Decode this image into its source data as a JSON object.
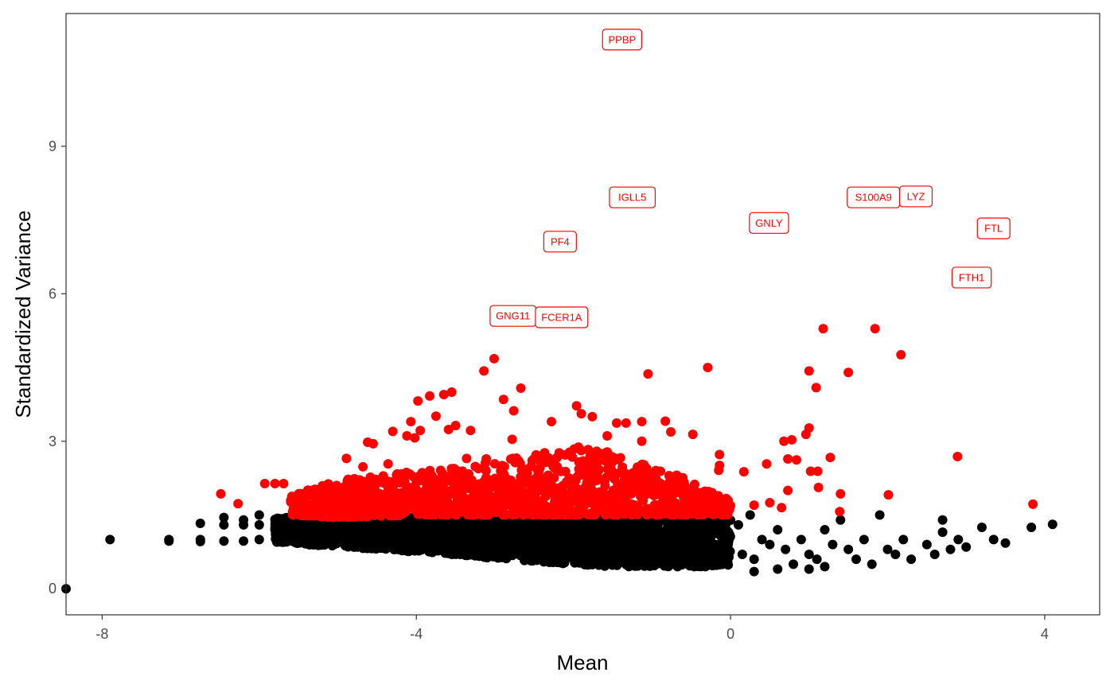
{
  "chart_data": {
    "type": "scatter",
    "title": "",
    "xlabel": "Mean",
    "ylabel": "Standardized Variance",
    "xlim": [
      -8.46,
      4.7
    ],
    "ylim": [
      -0.53,
      11.7
    ],
    "x_ticks": [
      -8,
      -4,
      0,
      4
    ],
    "y_ticks": [
      0,
      3,
      6,
      9
    ],
    "x_tick_labels": [
      "-8",
      "-4",
      "0",
      "4"
    ],
    "y_tick_labels": [
      "0",
      "3",
      "6",
      "9"
    ],
    "grid": false,
    "legend": "none",
    "colors": {
      "variable": "#ff0000",
      "non_variable": "#000000",
      "label_border": "#ff0000",
      "label_text": "#ff0000"
    },
    "labeled_points": [
      {
        "label": "PPBP",
        "x": -1.38,
        "y": 11.17
      },
      {
        "label": "IGLL5",
        "x": -1.25,
        "y": 7.96
      },
      {
        "label": "PF4",
        "x": -2.17,
        "y": 7.06
      },
      {
        "label": "GNG11",
        "x": -2.77,
        "y": 5.55
      },
      {
        "label": "FCER1A",
        "x": -2.15,
        "y": 5.52
      },
      {
        "label": "GNLY",
        "x": 0.49,
        "y": 7.44
      },
      {
        "label": "S100A9",
        "x": 1.82,
        "y": 7.96
      },
      {
        "label": "LYZ",
        "x": 2.36,
        "y": 7.98
      },
      {
        "label": "FTL",
        "x": 3.35,
        "y": 7.33
      },
      {
        "label": "FTH1",
        "x": 3.07,
        "y": 6.33
      }
    ],
    "non_variable_band": {
      "x": [
        -5.8,
        -5.0,
        -4.0,
        -3.0,
        -2.0,
        -1.5,
        -1.0,
        -0.5,
        0.0
      ],
      "ymin": [
        0.95,
        0.85,
        0.75,
        0.62,
        0.5,
        0.45,
        0.45,
        0.45,
        0.45
      ],
      "ymax": [
        1.45,
        1.45,
        1.45,
        1.45,
        1.5,
        1.5,
        1.5,
        1.45,
        1.4
      ]
    },
    "variable_band": {
      "x": [
        -5.6,
        -5.0,
        -4.0,
        -3.0,
        -2.0,
        -1.5,
        -1.0,
        -0.5,
        0.0
      ],
      "ymin": [
        1.5,
        1.45,
        1.5,
        1.5,
        1.5,
        1.5,
        1.5,
        1.5,
        1.5
      ],
      "ymax": [
        1.9,
        2.2,
        2.4,
        2.6,
        2.9,
        2.8,
        2.5,
        2.2,
        1.8
      ]
    },
    "non_variable_points": [
      [
        -8.46,
        0
      ],
      [
        -7.9,
        1.0
      ],
      [
        -7.15,
        1.0
      ],
      [
        -7.15,
        0.97
      ],
      [
        -6.75,
        1.33
      ],
      [
        -6.75,
        1.0
      ],
      [
        -6.75,
        0.96
      ],
      [
        -6.45,
        1.45
      ],
      [
        -6.45,
        1.3
      ],
      [
        -6.45,
        0.97
      ],
      [
        -6.2,
        1.4
      ],
      [
        -6.2,
        1.3
      ],
      [
        -6.2,
        0.97
      ],
      [
        -6.0,
        1.5
      ],
      [
        -6.0,
        1.3
      ],
      [
        -6.0,
        1.0
      ],
      [
        0.3,
        0.6
      ],
      [
        0.4,
        1.0
      ],
      [
        0.5,
        0.9
      ],
      [
        0.6,
        1.2
      ],
      [
        0.7,
        0.8
      ],
      [
        0.8,
        0.5
      ],
      [
        0.9,
        1.0
      ],
      [
        1.0,
        0.7
      ],
      [
        1.1,
        0.6
      ],
      [
        1.2,
        1.2
      ],
      [
        1.3,
        0.9
      ],
      [
        1.4,
        1.4
      ],
      [
        1.5,
        0.8
      ],
      [
        1.6,
        0.6
      ],
      [
        1.7,
        1.0
      ],
      [
        1.8,
        0.5
      ],
      [
        1.9,
        1.5
      ],
      [
        2.0,
        0.8
      ],
      [
        2.1,
        0.7
      ],
      [
        2.2,
        1.0
      ],
      [
        2.3,
        0.6
      ],
      [
        2.5,
        0.9
      ],
      [
        2.6,
        0.7
      ],
      [
        2.7,
        1.4
      ],
      [
        2.8,
        0.8
      ],
      [
        2.9,
        1.0
      ],
      [
        3.0,
        0.85
      ],
      [
        3.2,
        1.25
      ],
      [
        3.35,
        1.0
      ],
      [
        3.5,
        0.93
      ],
      [
        3.83,
        1.25
      ],
      [
        4.1,
        1.31
      ],
      [
        0.3,
        0.35
      ],
      [
        1.0,
        0.4
      ],
      [
        0.25,
        1.5
      ],
      [
        0.6,
        0.4
      ],
      [
        1.2,
        0.45
      ],
      [
        2.7,
        1.15
      ],
      [
        0.1,
        1.3
      ],
      [
        0.15,
        0.7
      ]
    ],
    "variable_points": [
      [
        -3.01,
        4.68
      ],
      [
        -3.14,
        4.43
      ],
      [
        -2.67,
        4.08
      ],
      [
        -3.55,
        4.0
      ],
      [
        -3.65,
        3.95
      ],
      [
        -3.83,
        3.92
      ],
      [
        -3.98,
        3.82
      ],
      [
        -2.89,
        3.85
      ],
      [
        -2.76,
        3.62
      ],
      [
        -3.75,
        3.51
      ],
      [
        -4.07,
        3.4
      ],
      [
        -4.3,
        3.2
      ],
      [
        -4.12,
        3.11
      ],
      [
        -3.95,
        3.22
      ],
      [
        -3.59,
        3.24
      ],
      [
        -3.5,
        3.32
      ],
      [
        -3.31,
        3.22
      ],
      [
        -1.96,
        3.72
      ],
      [
        -1.9,
        3.56
      ],
      [
        -1.76,
        3.5
      ],
      [
        -2.28,
        3.4
      ],
      [
        -1.45,
        3.37
      ],
      [
        -1.33,
        3.37
      ],
      [
        -1.13,
        3.4
      ],
      [
        -1.05,
        4.37
      ],
      [
        -0.29,
        4.5
      ],
      [
        -0.83,
        3.41
      ],
      [
        -0.76,
        3.19
      ],
      [
        -0.48,
        3.14
      ],
      [
        -1.13,
        3.0
      ],
      [
        -1.57,
        3.11
      ],
      [
        -2.78,
        3.04
      ],
      [
        -4.62,
        2.98
      ],
      [
        -4.02,
        3.07
      ],
      [
        -4.55,
        2.95
      ],
      [
        -4.36,
        2.54
      ],
      [
        -4.89,
        2.65
      ],
      [
        -4.68,
        2.48
      ],
      [
        -3.36,
        2.65
      ],
      [
        -3.11,
        2.64
      ],
      [
        0.46,
        2.54
      ],
      [
        0.68,
        3.0
      ],
      [
        0.78,
        3.03
      ],
      [
        0.84,
        2.62
      ],
      [
        0.73,
        2.64
      ],
      [
        1.0,
        3.27
      ],
      [
        0.96,
        3.14
      ],
      [
        1.0,
        4.43
      ],
      [
        1.09,
        4.09
      ],
      [
        1.18,
        5.29
      ],
      [
        1.84,
        5.29
      ],
      [
        1.5,
        4.4
      ],
      [
        2.17,
        4.76
      ],
      [
        1.27,
        2.67
      ],
      [
        1.11,
        2.39
      ],
      [
        1.02,
        2.39
      ],
      [
        0.73,
        2.0
      ],
      [
        1.12,
        2.06
      ],
      [
        1.4,
        1.93
      ],
      [
        2.01,
        1.91
      ],
      [
        2.89,
        2.69
      ],
      [
        3.85,
        1.72
      ],
      [
        1.39,
        1.57
      ],
      [
        0.17,
        2.38
      ],
      [
        -0.14,
        2.73
      ],
      [
        -0.15,
        2.41
      ],
      [
        -0.14,
        2.51
      ],
      [
        -6.49,
        1.93
      ],
      [
        -6.27,
        1.73
      ],
      [
        -5.93,
        2.14
      ],
      [
        -5.8,
        2.14
      ],
      [
        -5.69,
        2.14
      ],
      [
        0.3,
        1.7
      ],
      [
        0.5,
        1.75
      ],
      [
        0.65,
        1.65
      ]
    ]
  }
}
